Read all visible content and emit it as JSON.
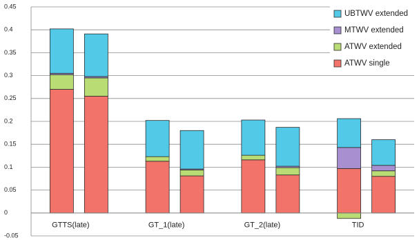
{
  "chart_data": {
    "type": "bar",
    "stacked": true,
    "categories": [
      "GTTS(late)",
      null,
      "GT_1(late)",
      null,
      "GT_2(late)",
      null,
      "TID",
      null
    ],
    "series": [
      {
        "name": "ATWV single",
        "color": "#f2736a",
        "values": [
          0.27,
          0.255,
          0.113,
          0.081,
          0.116,
          0.083,
          0.097,
          0.08
        ]
      },
      {
        "name": "ATWV extended",
        "color": "#b9dc74",
        "values": [
          0.032,
          0.04,
          0.01,
          0.013,
          0.01,
          0.016,
          -0.012,
          0.012
        ]
      },
      {
        "name": "MTWV extended",
        "color": "#a78fd0",
        "values": [
          0.003,
          0.003,
          0,
          0.002,
          0,
          0.003,
          0.046,
          0.012
        ]
      },
      {
        "name": "UBTWV extended",
        "color": "#52c9e6",
        "values": [
          0.097,
          0.093,
          0.079,
          0.084,
          0.077,
          0.085,
          0.063,
          0.056
        ]
      }
    ],
    "ylim": [
      -0.05,
      0.45
    ],
    "yticks": [
      -0.05,
      0,
      0.05,
      0.1,
      0.15,
      0.2,
      0.25,
      0.3,
      0.35,
      0.4,
      0.45
    ],
    "grid": true,
    "legend": "top-right"
  }
}
